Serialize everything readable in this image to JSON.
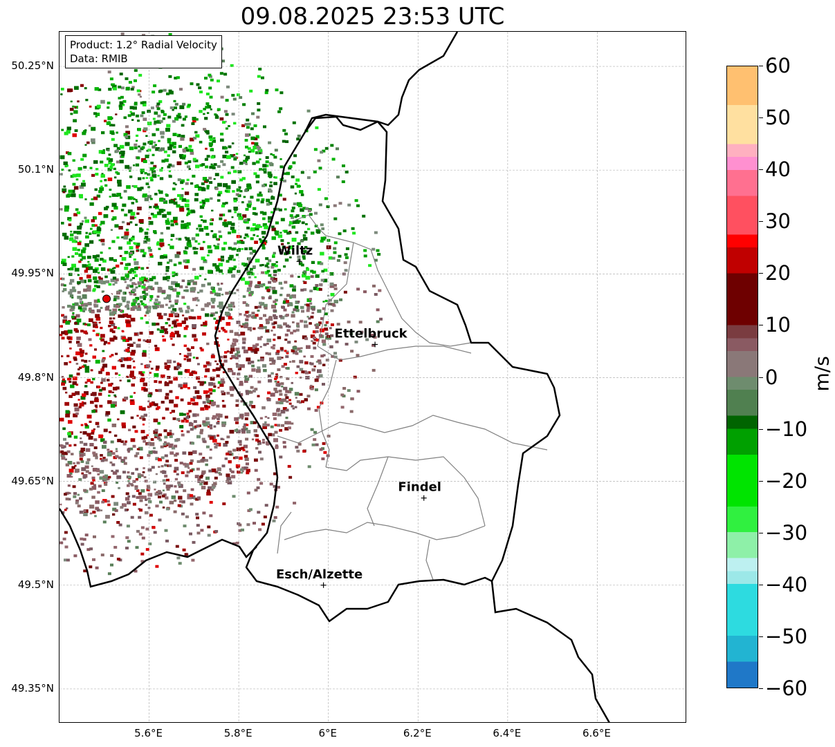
{
  "title": "09.08.2025 23:53 UTC",
  "info": {
    "product": "Product: 1.2° Radial Velocity",
    "data": "Data: RMIB"
  },
  "map": {
    "lon_range": [
      5.4,
      6.8
    ],
    "lat_range": [
      49.3,
      50.3
    ],
    "lat_ticks": [
      {
        "value": 50.25,
        "label": "50.25°N"
      },
      {
        "value": 50.1,
        "label": "50.1°N"
      },
      {
        "value": 49.95,
        "label": "49.95°N"
      },
      {
        "value": 49.8,
        "label": "49.8°N"
      },
      {
        "value": 49.65,
        "label": "49.65°N"
      },
      {
        "value": 49.5,
        "label": "49.5°N"
      },
      {
        "value": 49.35,
        "label": "49.35°N"
      }
    ],
    "lon_ticks": [
      {
        "value": 5.6,
        "label": "5.6°E"
      },
      {
        "value": 5.8,
        "label": "5.8°E"
      },
      {
        "value": 6.0,
        "label": "6°E"
      },
      {
        "value": 6.2,
        "label": "6.2°E"
      },
      {
        "value": 6.4,
        "label": "6.4°E"
      },
      {
        "value": 6.6,
        "label": "6.6°E"
      }
    ],
    "gridlines": true,
    "radar_site": {
      "lon": 5.505,
      "lat": 49.914,
      "color": "#e00000"
    },
    "cities": [
      {
        "name": "Wiltz",
        "lon": 5.935,
        "lat": 49.968
      },
      {
        "name": "Ettelbruck",
        "lon": 6.104,
        "lat": 49.848
      },
      {
        "name": "Findel",
        "lon": 6.213,
        "lat": 49.626
      },
      {
        "name": "Esch/Alzette",
        "lon": 5.989,
        "lat": 49.5
      }
    ]
  },
  "colorbar": {
    "vmin": -60,
    "vmax": 60,
    "unit": "m/s",
    "ticks": [
      {
        "value": 60,
        "label": "60"
      },
      {
        "value": 50,
        "label": "50"
      },
      {
        "value": 40,
        "label": "40"
      },
      {
        "value": 30,
        "label": "30"
      },
      {
        "value": 20,
        "label": "20"
      },
      {
        "value": 10,
        "label": "10"
      },
      {
        "value": 0,
        "label": "0"
      },
      {
        "value": -10,
        "label": "−10"
      },
      {
        "value": -20,
        "label": "−20"
      },
      {
        "value": -30,
        "label": "−30"
      },
      {
        "value": -40,
        "label": "−40"
      },
      {
        "value": -50,
        "label": "−50"
      },
      {
        "value": -60,
        "label": "−60"
      }
    ],
    "color_stops": [
      {
        "value": -60,
        "color": "#1f78c8"
      },
      {
        "value": -55,
        "color": "#22b4d2"
      },
      {
        "value": -50,
        "color": "#2ddbe0"
      },
      {
        "value": -40,
        "color": "#9ce8e8"
      },
      {
        "value": -36,
        "color": "#bdf0f0"
      },
      {
        "value": -34,
        "color": "#8ef0a8"
      },
      {
        "value": -30,
        "color": "#30f040"
      },
      {
        "value": -25,
        "color": "#00e400"
      },
      {
        "value": -15,
        "color": "#00a000"
      },
      {
        "value": -8,
        "color": "#006400"
      },
      {
        "value": -6,
        "color": "#508050"
      },
      {
        "value": -1,
        "color": "#6e8c6e"
      },
      {
        "value": 1,
        "color": "#8a7878"
      },
      {
        "value": 5,
        "color": "#8a5a62"
      },
      {
        "value": 9,
        "color": "#7a3c40"
      },
      {
        "value": 10,
        "color": "#6e0000"
      },
      {
        "value": 20,
        "color": "#c00000"
      },
      {
        "value": 27,
        "color": "#ff0000"
      },
      {
        "value": 28,
        "color": "#ff5060"
      },
      {
        "value": 35,
        "color": "#ff7090"
      },
      {
        "value": 40,
        "color": "#ff90d0"
      },
      {
        "value": 44,
        "color": "#ffb0c0"
      },
      {
        "value": 47,
        "color": "#ffe0a0"
      },
      {
        "value": 53,
        "color": "#ffc070"
      },
      {
        "value": 60,
        "color": "#ff9a50"
      }
    ]
  },
  "colors": {
    "border_country": "#000000",
    "border_canton": "#808080",
    "grid": "#b4b4b4"
  }
}
